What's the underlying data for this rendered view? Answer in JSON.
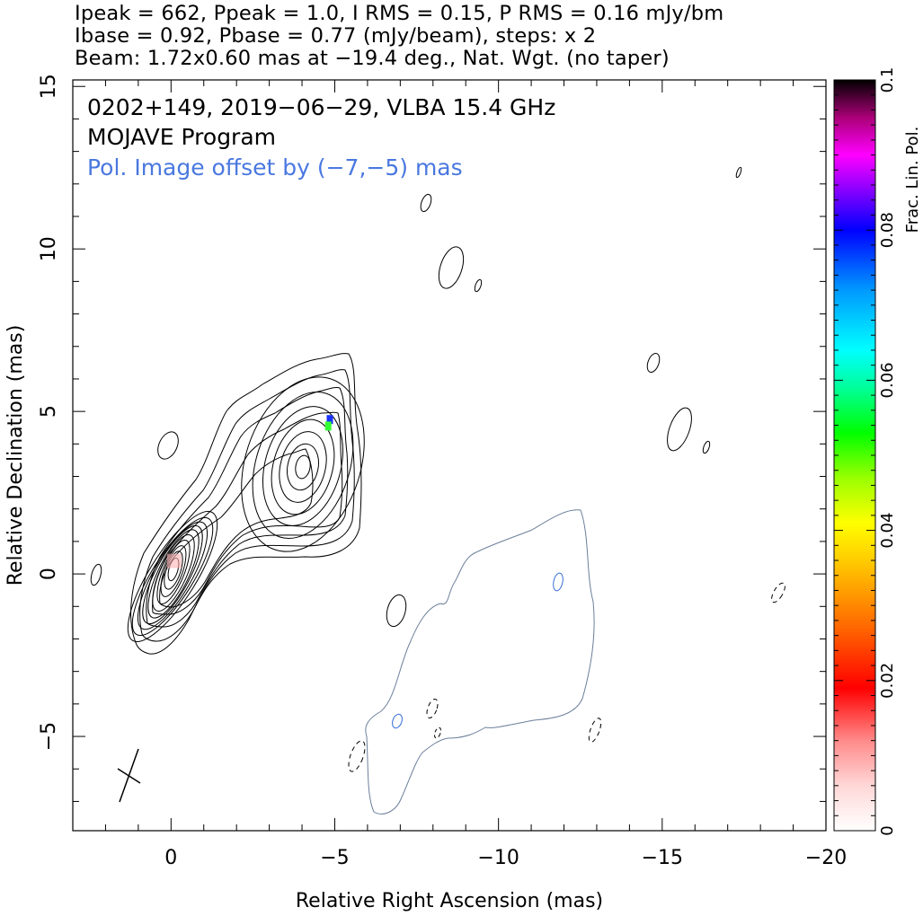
{
  "header": {
    "line1": "Ipeak = 662, Ppeak = 1.0, I RMS = 0.15, P RMS = 0.16 mJy/bm",
    "line2": "Ibase = 0.92, Pbase = 0.77 (mJy/beam), steps: x 2",
    "line3": "Beam: 1.72x0.60 mas at −19.4 deg., Nat. Wgt. (no taper)"
  },
  "chart_data": {
    "type": "contour",
    "title": "0202+149, 2019−06−29, VLBA 15.4 GHz",
    "subtitle": "MOJAVE Program",
    "annotation": "Pol. Image offset by (−7,−5) mas",
    "annotation_color": "#4a78e0",
    "xlabel": "Relative Right Ascension (mas)",
    "ylabel": "Relative Declination (mas)",
    "xlim": [
      3.0,
      -20.0
    ],
    "ylim": [
      -7.9,
      15.2
    ],
    "x_ticks": [
      {
        "v": 0,
        "label": "0"
      },
      {
        "v": -5,
        "label": "−5"
      },
      {
        "v": -10,
        "label": "−10"
      },
      {
        "v": -15,
        "label": "−15"
      },
      {
        "v": -20,
        "label": "−20"
      }
    ],
    "y_ticks": [
      {
        "v": -5,
        "label": "−5"
      },
      {
        "v": 0,
        "label": "0"
      },
      {
        "v": 5,
        "label": "5"
      },
      {
        "v": 10,
        "label": "10"
      },
      {
        "v": 15,
        "label": "15"
      }
    ],
    "total_intensity_core": {
      "x": -0.1,
      "y": 0.2,
      "levels": 10
    },
    "total_intensity_knot": {
      "x": -3.9,
      "y": 3.2,
      "levels": 7
    },
    "fractional_pol_spots": [
      {
        "x": -4.85,
        "y": 4.75,
        "frac": 0.075
      },
      {
        "x": -4.8,
        "y": 4.55,
        "frac": 0.05
      },
      {
        "x": -0.1,
        "y": 0.4,
        "frac": 0.003
      }
    ],
    "colorbar": {
      "label": "Frac. Lin. Pol.",
      "min": 0,
      "max": 0.1,
      "ticks": [
        {
          "v": 0,
          "label": "0"
        },
        {
          "v": 0.02,
          "label": "0.02"
        },
        {
          "v": 0.04,
          "label": "0.04"
        },
        {
          "v": 0.06,
          "label": "0.06"
        },
        {
          "v": 0.08,
          "label": "0.08"
        },
        {
          "v": 0.1,
          "label": "0.1"
        }
      ]
    },
    "beam": {
      "major_mas": 1.72,
      "minor_mas": 0.6,
      "pa_deg": -19.4
    },
    "colors": {
      "intensity": "#000000",
      "polarization": "#6b7f99",
      "pol_blue": "#3a6fd8"
    }
  }
}
